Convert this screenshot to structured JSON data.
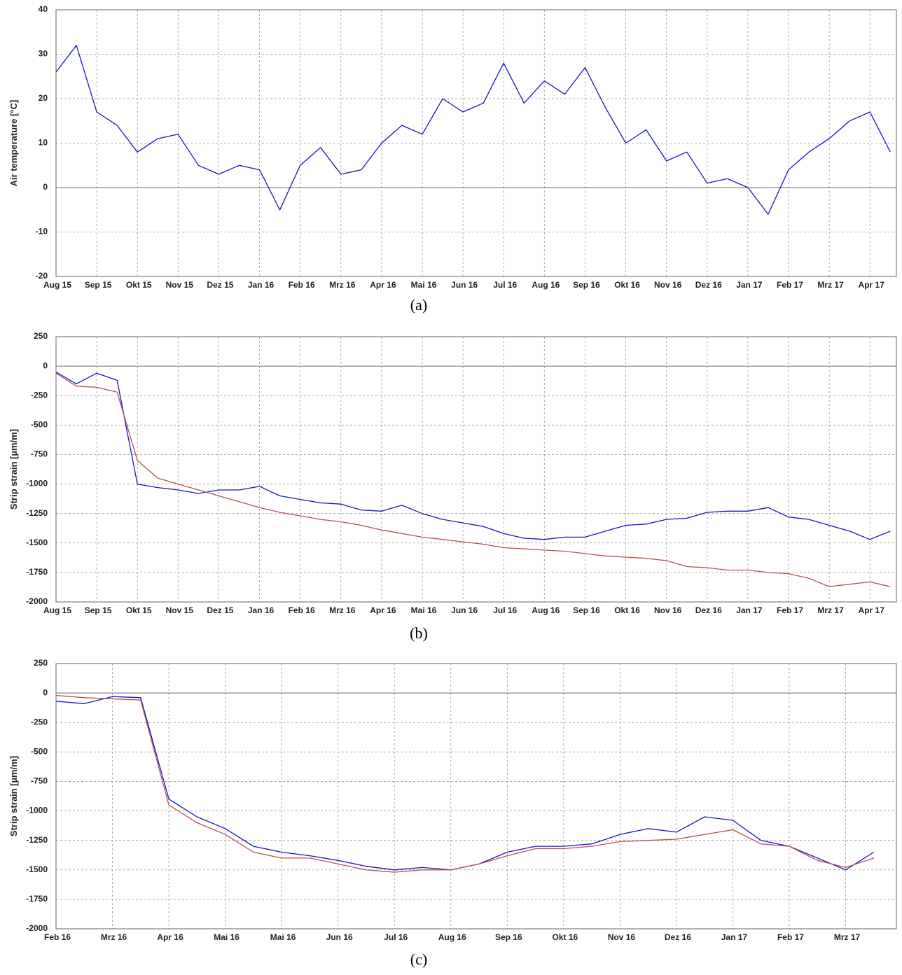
{
  "chart_data": [
    {
      "type": "line",
      "caption": "(a)",
      "y_label": "Air temperature [°C]",
      "x": [
        0,
        0.5,
        1,
        1.5,
        2,
        2.5,
        3,
        3.5,
        4,
        4.5,
        5,
        5.5,
        6,
        6.5,
        7,
        7.5,
        8,
        8.5,
        9,
        9.5,
        10,
        10.5,
        11,
        11.5,
        12,
        12.5,
        13,
        13.5,
        14,
        14.5,
        15,
        15.5,
        16,
        16.5,
        17,
        17.5,
        18,
        18.5,
        19,
        19.5,
        20,
        20.5
      ],
      "xlim": [
        0,
        20.65
      ],
      "xticks": [
        {
          "value": 0,
          "label": "Aug 15"
        },
        {
          "value": 1,
          "label": "Sep 15"
        },
        {
          "value": 2,
          "label": "Okt 15"
        },
        {
          "value": 3,
          "label": "Nov 15"
        },
        {
          "value": 4,
          "label": "Dez 15"
        },
        {
          "value": 5,
          "label": "Jan 16"
        },
        {
          "value": 6,
          "label": "Feb 16"
        },
        {
          "value": 7,
          "label": "Mrz 16"
        },
        {
          "value": 8,
          "label": "Apr 16"
        },
        {
          "value": 9,
          "label": "Mai 16"
        },
        {
          "value": 10,
          "label": "Jun 16"
        },
        {
          "value": 11,
          "label": "Jul 16"
        },
        {
          "value": 12,
          "label": "Aug 16"
        },
        {
          "value": 13,
          "label": "Sep 16"
        },
        {
          "value": 14,
          "label": "Okt 16"
        },
        {
          "value": 15,
          "label": "Nov 16"
        },
        {
          "value": 16,
          "label": "Dez 16"
        },
        {
          "value": 17,
          "label": "Jan 17"
        },
        {
          "value": 18,
          "label": "Feb 17"
        },
        {
          "value": 19,
          "label": "Mrz 17"
        },
        {
          "value": 20,
          "label": "Apr 17"
        }
      ],
      "ylim": [
        -20,
        40
      ],
      "yticks": [
        -20,
        -10,
        0,
        10,
        20,
        30,
        40
      ],
      "grid": true,
      "series": [
        {
          "color": "#1414c8",
          "values": [
            26,
            32,
            17,
            14,
            8,
            11,
            12,
            5,
            3,
            5,
            4,
            -5,
            5,
            9,
            3,
            4,
            10,
            14,
            12,
            20,
            17,
            19,
            28,
            19,
            24,
            21,
            27,
            18,
            10,
            13,
            6,
            8,
            1,
            2,
            0,
            -6,
            4,
            8,
            11,
            15,
            17,
            8
          ]
        }
      ]
    },
    {
      "type": "line",
      "caption": "(b)",
      "y_label": "Strip strain [µm/m]",
      "x": [
        0,
        0.5,
        1,
        1.5,
        2,
        2.5,
        3,
        3.5,
        4,
        4.5,
        5,
        5.5,
        6,
        6.5,
        7,
        7.5,
        8,
        8.5,
        9,
        9.5,
        10,
        10.5,
        11,
        11.5,
        12,
        12.5,
        13,
        13.5,
        14,
        14.5,
        15,
        15.5,
        16,
        16.5,
        17,
        17.5,
        18,
        18.5,
        19,
        19.5,
        20,
        20.5
      ],
      "xlim": [
        0,
        20.65
      ],
      "xticks": [
        {
          "value": 0,
          "label": "Aug 15"
        },
        {
          "value": 1,
          "label": "Sep 15"
        },
        {
          "value": 2,
          "label": "Okt 15"
        },
        {
          "value": 3,
          "label": "Nov 15"
        },
        {
          "value": 4,
          "label": "Dez 15"
        },
        {
          "value": 5,
          "label": "Jan 16"
        },
        {
          "value": 6,
          "label": "Feb 16"
        },
        {
          "value": 7,
          "label": "Mrz 16"
        },
        {
          "value": 8,
          "label": "Apr 16"
        },
        {
          "value": 9,
          "label": "Mai 16"
        },
        {
          "value": 10,
          "label": "Jun 16"
        },
        {
          "value": 11,
          "label": "Jul 16"
        },
        {
          "value": 12,
          "label": "Aug 16"
        },
        {
          "value": 13,
          "label": "Sep 16"
        },
        {
          "value": 14,
          "label": "Okt 16"
        },
        {
          "value": 15,
          "label": "Nov 16"
        },
        {
          "value": 16,
          "label": "Dez 16"
        },
        {
          "value": 17,
          "label": "Jan 17"
        },
        {
          "value": 18,
          "label": "Feb 17"
        },
        {
          "value": 19,
          "label": "Mrz 17"
        },
        {
          "value": 20,
          "label": "Apr 17"
        }
      ],
      "ylim": [
        -2000,
        250
      ],
      "yticks": [
        -2000,
        -1750,
        -1500,
        -1250,
        -1000,
        -750,
        -500,
        -250,
        0,
        250
      ],
      "grid": true,
      "series": [
        {
          "color": "#1414c8",
          "values": [
            -50,
            -150,
            -60,
            -120,
            -1000,
            -1030,
            -1050,
            -1080,
            -1050,
            -1050,
            -1020,
            -1100,
            -1130,
            -1160,
            -1170,
            -1220,
            -1230,
            -1180,
            -1250,
            -1300,
            -1330,
            -1360,
            -1420,
            -1460,
            -1470,
            -1450,
            -1450,
            -1400,
            -1350,
            -1340,
            -1300,
            -1290,
            -1240,
            -1230,
            -1230,
            -1200,
            -1280,
            -1300,
            -1350,
            -1400,
            -1470,
            -1400
          ]
        },
        {
          "color": "#b5524a",
          "values": [
            -60,
            -170,
            -180,
            -220,
            -800,
            -950,
            -1000,
            -1050,
            -1100,
            -1150,
            -1200,
            -1240,
            -1270,
            -1300,
            -1320,
            -1350,
            -1390,
            -1420,
            -1450,
            -1470,
            -1490,
            -1510,
            -1540,
            -1550,
            -1560,
            -1570,
            -1590,
            -1610,
            -1620,
            -1630,
            -1650,
            -1700,
            -1710,
            -1730,
            -1730,
            -1750,
            -1760,
            -1800,
            -1870,
            -1850,
            -1830,
            -1870
          ]
        }
      ]
    },
    {
      "type": "line",
      "caption": "(c)",
      "y_label": "Strip strain [µm/m]",
      "x": [
        0,
        0.5,
        1,
        1.5,
        2,
        2.5,
        3,
        3.5,
        4,
        4.5,
        5,
        5.5,
        6,
        6.5,
        7,
        7.5,
        8,
        8.5,
        9,
        9.5,
        10,
        10.5,
        11,
        11.5,
        12,
        12.5,
        13,
        13.5,
        14,
        14.5
      ],
      "xlim": [
        0,
        14.9
      ],
      "xticks": [
        {
          "value": 0,
          "label": "Feb 16"
        },
        {
          "value": 1,
          "label": "Mrz 16"
        },
        {
          "value": 2,
          "label": "Apr 16"
        },
        {
          "value": 3,
          "label": "Mai 16"
        },
        {
          "value": 4,
          "label": "Mai 16"
        },
        {
          "value": 5,
          "label": "Jun 16"
        },
        {
          "value": 6,
          "label": "Jul 16"
        },
        {
          "value": 7,
          "label": "Aug 16"
        },
        {
          "value": 8,
          "label": "Sep 16"
        },
        {
          "value": 9,
          "label": "Okt 16"
        },
        {
          "value": 10,
          "label": "Nov 16"
        },
        {
          "value": 11,
          "label": "Dez 16"
        },
        {
          "value": 12,
          "label": "Jan 17"
        },
        {
          "value": 13,
          "label": "Feb 17"
        },
        {
          "value": 14,
          "label": "Mrz 17"
        }
      ],
      "ylim": [
        -2000,
        250
      ],
      "yticks": [
        -2000,
        -1750,
        -1500,
        -1250,
        -1000,
        -750,
        -500,
        -250,
        0,
        250
      ],
      "grid": true,
      "series": [
        {
          "color": "#1414c8",
          "values": [
            -70,
            -90,
            -30,
            -40,
            -900,
            -1050,
            -1150,
            -1300,
            -1350,
            -1380,
            -1420,
            -1470,
            -1500,
            -1480,
            -1500,
            -1450,
            -1350,
            -1300,
            -1300,
            -1280,
            -1200,
            -1150,
            -1180,
            -1050,
            -1080,
            -1250,
            -1300,
            -1400,
            -1500,
            -1350
          ]
        },
        {
          "color": "#b5524a",
          "values": [
            -20,
            -40,
            -50,
            -60,
            -950,
            -1100,
            -1200,
            -1350,
            -1400,
            -1400,
            -1450,
            -1500,
            -1520,
            -1500,
            -1500,
            -1450,
            -1380,
            -1320,
            -1320,
            -1300,
            -1260,
            -1250,
            -1240,
            -1200,
            -1160,
            -1280,
            -1300,
            -1420,
            -1480,
            -1400
          ]
        }
      ]
    }
  ]
}
